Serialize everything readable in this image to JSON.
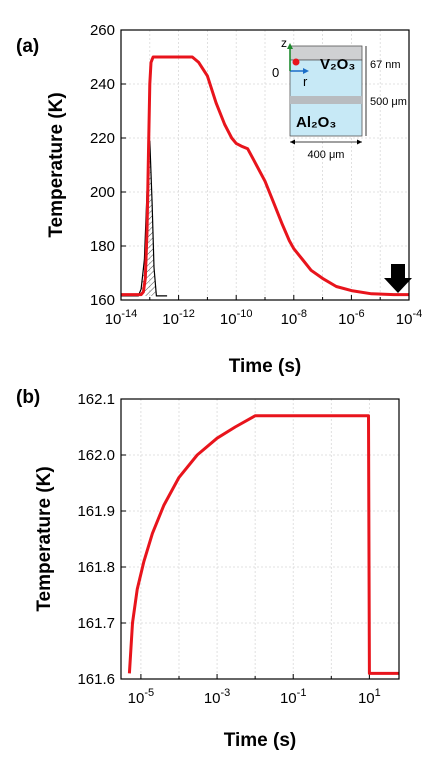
{
  "chart_data": [
    {
      "panel_label": "(a)",
      "type": "line",
      "xlabel": "Time (s)",
      "ylabel": "Temperature (K)",
      "xscale": "log",
      "xlim": [
        1e-14,
        0.0001
      ],
      "ylim": [
        160,
        260
      ],
      "x_ticks": [
        -14,
        -12,
        -10,
        -8,
        -6,
        -4
      ],
      "y_ticks": [
        160,
        180,
        200,
        220,
        240,
        260
      ],
      "grid": true,
      "colors": {
        "temperature": "#e8141c",
        "pulse": "#000000"
      },
      "series": [
        {
          "name": "",
          "points": [
            [
              1e-14,
              162
            ],
            [
              5e-14,
              162
            ],
            [
              6e-14,
              163
            ],
            [
              7e-14,
              168
            ],
            [
              8e-14,
              185
            ],
            [
              9e-14,
              215
            ],
            [
              1e-13,
              240
            ],
            [
              1.1e-13,
              248
            ],
            [
              1.3e-13,
              250
            ],
            [
              2e-13,
              250
            ],
            [
              1e-12,
              250
            ],
            [
              3e-12,
              250
            ],
            [
              5e-12,
              248
            ],
            [
              1e-11,
              243
            ],
            [
              2e-11,
              233
            ],
            [
              4e-11,
              225
            ],
            [
              7e-11,
              220
            ],
            [
              1e-10,
              218
            ],
            [
              1.5e-10,
              217
            ],
            [
              2.5e-10,
              216
            ],
            [
              4e-10,
              212
            ],
            [
              1e-09,
              204
            ],
            [
              2e-09,
              196
            ],
            [
              4e-09,
              188
            ],
            [
              7e-09,
              182
            ],
            [
              1e-08,
              179
            ],
            [
              2e-08,
              175
            ],
            [
              4e-08,
              171
            ],
            [
              1e-07,
              168
            ],
            [
              3e-07,
              165
            ],
            [
              1e-06,
              163.5
            ],
            [
              5e-06,
              162.3
            ],
            [
              3e-05,
              162
            ],
            [
              0.0001,
              162
            ]
          ]
        },
        {
          "name": "",
          "points": [
            [
              1e-14,
              161.5
            ],
            [
              4e-14,
              161.5
            ],
            [
              5e-14,
              164
            ],
            [
              6.5e-14,
              175
            ],
            [
              8e-14,
              200
            ],
            [
              1e-13,
              219
            ],
            [
              1.2e-13,
              196
            ],
            [
              1.4e-13,
              172
            ],
            [
              1.7e-13,
              161.5
            ],
            [
              4e-13,
              161.5
            ]
          ]
        }
      ],
      "annotations": {
        "inset": {
          "axis_z": "z",
          "axis_r": "r",
          "origin": "0",
          "film": "V₂O₃",
          "substrate": "Al₂O₃",
          "film_thickness": "67 nm",
          "substrate_thickness": "500 μm",
          "width": "400 μm",
          "colors": {
            "film": "#cfd0d2",
            "substrate": "#c7e9f6",
            "band": "#b8bcc0",
            "z_axis": "#1e8a2e",
            "r_axis": "#1b6ec8",
            "dot": "#e8141c"
          }
        },
        "arrow": {
          "x": 5e-05,
          "meaning": "time window of panel (b)"
        }
      }
    },
    {
      "panel_label": "(b)",
      "type": "line",
      "xlabel": "Time (s)",
      "ylabel": "Temperature (K)",
      "xscale": "log",
      "xlim": [
        3e-06,
        60
      ],
      "ylim": [
        161.6,
        162.1
      ],
      "x_ticks": [
        -5,
        -3,
        -1,
        1
      ],
      "y_ticks": [
        161.6,
        161.7,
        161.8,
        161.9,
        162.0,
        162.1
      ],
      "y_tick_labels": [
        "161.6",
        "161.7",
        "161.8",
        "161.9",
        "162.0",
        "162.1"
      ],
      "grid": true,
      "colors": {
        "temperature": "#e8141c"
      },
      "series": [
        {
          "name": "",
          "points": [
            [
              5e-06,
              161.61
            ],
            [
              6e-06,
              161.7
            ],
            [
              8e-06,
              161.76
            ],
            [
              1.2e-05,
              161.81
            ],
            [
              2e-05,
              161.86
            ],
            [
              4e-05,
              161.91
            ],
            [
              0.0001,
              161.96
            ],
            [
              0.0003,
              162.0
            ],
            [
              0.001,
              162.03
            ],
            [
              0.003,
              162.05
            ],
            [
              0.01,
              162.07
            ],
            [
              1,
              162.07
            ],
            [
              9.5,
              162.07
            ],
            [
              10,
              161.61
            ],
            [
              60,
              161.61
            ]
          ]
        }
      ]
    }
  ]
}
